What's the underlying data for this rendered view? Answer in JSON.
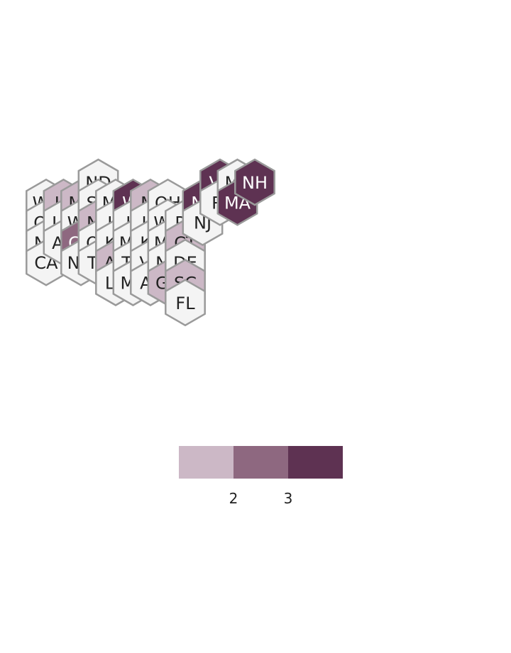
{
  "palette": {
    "0": "#f4f4f4",
    "1": "#ccb8c6",
    "2": "#8e6880",
    "3": "#5e3252",
    "stroke": "#9a9a9a",
    "text_light_bg": "#222222",
    "text_dark_bg": "#ffffff"
  },
  "states": [
    {
      "code": "WA",
      "col": 0,
      "row": 1,
      "level": 0
    },
    {
      "code": "OR",
      "col": 0,
      "row": 2,
      "level": 0
    },
    {
      "code": "NV",
      "col": 0,
      "row": 3,
      "level": 0
    },
    {
      "code": "CA",
      "col": 0,
      "row": 4,
      "level": 0
    },
    {
      "code": "ID",
      "col": 1,
      "row": 1,
      "level": 1
    },
    {
      "code": "UT",
      "col": 1,
      "row": 2,
      "level": 0
    },
    {
      "code": "AZ",
      "col": 1,
      "row": 3,
      "level": 0
    },
    {
      "code": "MT",
      "col": 2,
      "row": 1,
      "level": 1
    },
    {
      "code": "WY",
      "col": 2,
      "row": 2,
      "level": 0
    },
    {
      "code": "CO",
      "col": 2,
      "row": 3,
      "level": 2
    },
    {
      "code": "NM",
      "col": 2,
      "row": 4,
      "level": 0
    },
    {
      "code": "ND",
      "col": 3,
      "row": 0,
      "level": 0
    },
    {
      "code": "SD",
      "col": 3,
      "row": 1,
      "level": 0
    },
    {
      "code": "NE",
      "col": 3,
      "row": 2,
      "level": 1
    },
    {
      "code": "OK",
      "col": 3,
      "row": 3,
      "level": 0
    },
    {
      "code": "TX",
      "col": 3,
      "row": 4,
      "level": 0
    },
    {
      "code": "MN",
      "col": 4,
      "row": 1,
      "level": 0
    },
    {
      "code": "IA",
      "col": 4,
      "row": 2,
      "level": 0
    },
    {
      "code": "KS",
      "col": 4,
      "row": 3,
      "level": 0
    },
    {
      "code": "AR",
      "col": 4,
      "row": 4,
      "level": 1
    },
    {
      "code": "LA",
      "col": 4,
      "row": 5,
      "level": 0
    },
    {
      "code": "WI",
      "col": 5,
      "row": 1,
      "level": 3
    },
    {
      "code": "IL",
      "col": 5,
      "row": 2,
      "level": 0
    },
    {
      "code": "MO",
      "col": 5,
      "row": 3,
      "level": 0
    },
    {
      "code": "TN",
      "col": 5,
      "row": 4,
      "level": 0
    },
    {
      "code": "MS",
      "col": 5,
      "row": 5,
      "level": 0
    },
    {
      "code": "MI",
      "col": 6,
      "row": 1,
      "level": 1
    },
    {
      "code": "IN",
      "col": 6,
      "row": 2,
      "level": 0
    },
    {
      "code": "KY",
      "col": 6,
      "row": 3,
      "level": 0
    },
    {
      "code": "VA",
      "col": 6,
      "row": 4,
      "level": 0
    },
    {
      "code": "AL",
      "col": 6,
      "row": 5,
      "level": 0
    },
    {
      "code": "OH",
      "col": 7,
      "row": 1,
      "level": 0
    },
    {
      "code": "WV",
      "col": 7,
      "row": 2,
      "level": 0
    },
    {
      "code": "MD",
      "col": 7,
      "row": 3,
      "level": 0
    },
    {
      "code": "NC",
      "col": 7,
      "row": 4,
      "level": 0
    },
    {
      "code": "GA",
      "col": 7,
      "row": 5,
      "level": 1
    },
    {
      "code": "PA",
      "col": 8,
      "row": 2,
      "level": 0
    },
    {
      "code": "CT",
      "col": 8,
      "row": 3,
      "level": 1
    },
    {
      "code": "DE",
      "col": 8,
      "row": 4,
      "level": 0
    },
    {
      "code": "SC",
      "col": 8,
      "row": 5,
      "level": 1
    },
    {
      "code": "FL",
      "col": 8,
      "row": 6,
      "level": 0
    },
    {
      "code": "NY",
      "col": 9,
      "row": 1,
      "level": 3
    },
    {
      "code": "NJ",
      "col": 9,
      "row": 2,
      "level": 0
    },
    {
      "code": "VT",
      "col": 10,
      "row": 0,
      "level": 3
    },
    {
      "code": "RI",
      "col": 10,
      "row": 1,
      "level": 0
    },
    {
      "code": "ME",
      "col": 11,
      "row": 0,
      "level": 0
    },
    {
      "code": "MA",
      "col": 11,
      "row": 1,
      "level": 3
    },
    {
      "code": "NH",
      "col": 12,
      "row": 0,
      "level": 3
    }
  ],
  "legend": {
    "levels": [
      1,
      2,
      3
    ],
    "tick_labels": [
      "2",
      "3"
    ]
  }
}
